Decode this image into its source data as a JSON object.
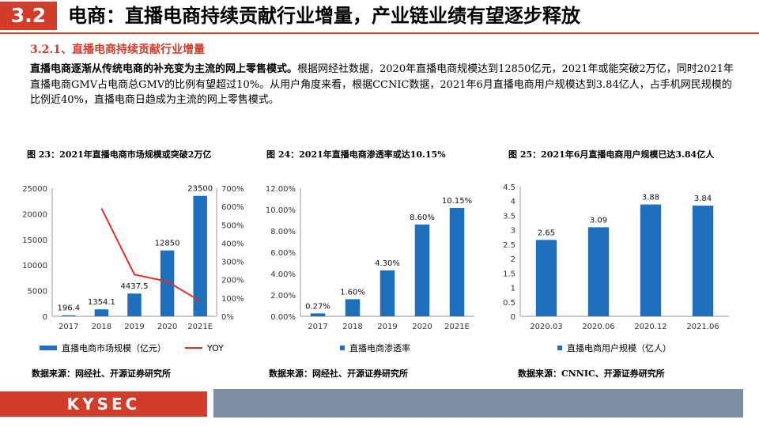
{
  "header": {
    "section_number": "3.2",
    "title": "电商：直播电商持续贡献行业增量，产业链业绩有望逐步释放"
  },
  "subheading": "3.2.1、直播电商持续贡献行业增量",
  "body": {
    "lead": "直播电商逐渐从传统电商的补充变为主流的网上零售模式。",
    "text": "根据网经社数据，2020年直播电商规模达到12850亿元，2021年或能突破2万亿，同时2021年直播电商GMV占电商总GMV的比例有望超过10%。从用户角度来看，根据CCNIC数据，2021年6月直播电商用户规模达到3.84亿人，占手机网民规模的比例近40%，直播电商日趋成为主流的网上零售模式。"
  },
  "colors": {
    "accent": "#d23c2a",
    "bar": "#1e6fbd",
    "line": "#e0322a",
    "footer_bar": "#7f8fa3"
  },
  "chart_data": [
    {
      "type": "bar",
      "title": "图 23：2021年直播电商市场规模或突破2万亿",
      "categories": [
        "2017",
        "2018",
        "2019",
        "2020",
        "2021E"
      ],
      "series": [
        {
          "name": "直播电商市场规模（亿元）",
          "axis": "left",
          "values": [
            196.4,
            1354.1,
            4437.5,
            12850,
            23500
          ],
          "labels": [
            "196.4",
            "1354.1",
            "4437.5",
            "12850",
            "23500"
          ]
        },
        {
          "name": "YOY",
          "type": "line",
          "axis": "right",
          "values": [
            null,
            5.9,
            2.28,
            1.9,
            0.83
          ]
        }
      ],
      "ylim": [
        0,
        25000
      ],
      "yticks": [
        "0",
        "5000",
        "10000",
        "15000",
        "20000",
        "25000"
      ],
      "y2lim": [
        0,
        7
      ],
      "y2ticks": [
        "0%",
        "100%",
        "200%",
        "300%",
        "400%",
        "500%",
        "600%",
        "700%"
      ],
      "source": "数据来源：网经社、开源证券研究所"
    },
    {
      "type": "bar",
      "title": "图 24：2021年直播电商渗透率或达10.15%",
      "categories": [
        "2017",
        "2018",
        "2019",
        "2020",
        "2021E"
      ],
      "series": [
        {
          "name": "直播电商渗透率",
          "values": [
            0.27,
            1.6,
            4.3,
            8.6,
            10.15
          ],
          "labels": [
            "0.27%",
            "1.60%",
            "4.30%",
            "8.60%",
            "10.15%"
          ]
        }
      ],
      "ylim": [
        0,
        12
      ],
      "yticks": [
        "0.00%",
        "2.00%",
        "4.00%",
        "6.00%",
        "8.00%",
        "10.00%",
        "12.00%"
      ],
      "source": "数据来源：网经社、开源证券研究所"
    },
    {
      "type": "bar",
      "title": "图 25：2021年6月直播电商用户规模已达3.84亿人",
      "categories": [
        "2020.03",
        "2020.06",
        "2020.12",
        "2021.06"
      ],
      "series": [
        {
          "name": "直播电商用户规模（亿人）",
          "values": [
            2.65,
            3.09,
            3.88,
            3.84
          ],
          "labels": [
            "2.65",
            "3.09",
            "3.88",
            "3.84"
          ]
        }
      ],
      "ylim": [
        0,
        4.5
      ],
      "yticks": [
        "0",
        "0.5",
        "1",
        "1.5",
        "2",
        "2.5",
        "3",
        "3.5",
        "4",
        "4.5"
      ],
      "source": "数据来源：CNNIC、开源证券研究所"
    }
  ],
  "footer": {
    "logo": "KYSEC"
  }
}
